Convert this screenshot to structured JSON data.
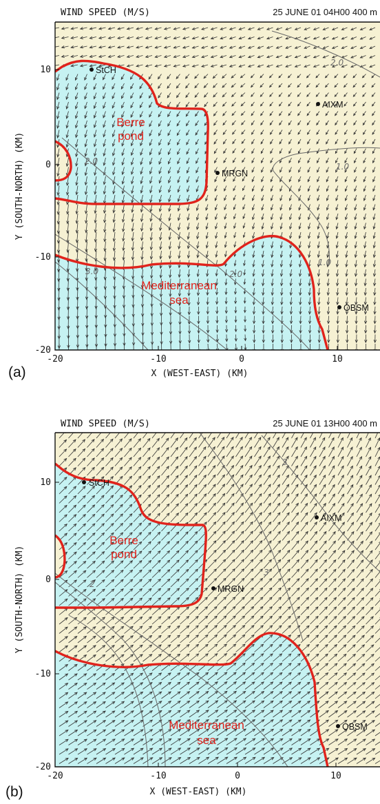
{
  "panels": [
    {
      "panel_label": "(a)",
      "title": "WIND SPEED (M/S)",
      "timestamp": "25 JUNE 01  04H00   400 m",
      "x_axis_label": "X (WEST-EAST) (KM)",
      "y_axis_label": "Y (SOUTH-NORTH) (KM)",
      "x_ticks": [
        "-20",
        "-10",
        "0",
        "10"
      ],
      "y_ticks": [
        "10",
        "0",
        "-10",
        "-20"
      ],
      "stations": [
        "StCH",
        "AIXM",
        "MRGN",
        "OBSM"
      ],
      "regions": [
        {
          "name_line1": "Berre",
          "name_line2": "pond"
        },
        {
          "name_line1": "Mediterranean",
          "name_line2": "sea"
        }
      ],
      "contour_labels": [
        "2.0",
        "1.0",
        "2.0",
        "3.0",
        "2.0",
        "1.0"
      ],
      "wind_flow": "night land breeze, winds blowing toward the sea (south)"
    },
    {
      "panel_label": "(b)",
      "title": "WIND SPEED (M/S)",
      "timestamp": "25 JUNE 01  13H00   400 m",
      "x_axis_label": "X (WEST-EAST) (KM)",
      "y_axis_label": "Y (SOUTH-NORTH) (KM)",
      "x_ticks": [
        "-20",
        "-10",
        "0",
        "10"
      ],
      "y_ticks": [
        "10",
        "0",
        "-10",
        "-20"
      ],
      "stations": [
        "StCH",
        "AIXM",
        "MRGN",
        "OBSM"
      ],
      "regions": [
        {
          "name_line1": "Berre",
          "name_line2": "pond"
        },
        {
          "name_line1": "Mediterranean",
          "name_line2": "sea"
        }
      ],
      "contour_labels": [
        "3",
        "2",
        "3"
      ],
      "wind_flow": "daytime sea breeze, winds blowing inland (north-east)"
    }
  ],
  "colors": {
    "land": "#f6f1d3",
    "water": "#c6f2f2",
    "coastline": "#e0231c",
    "contour": "#666666",
    "vector": "#333333",
    "frame": "#111111"
  }
}
